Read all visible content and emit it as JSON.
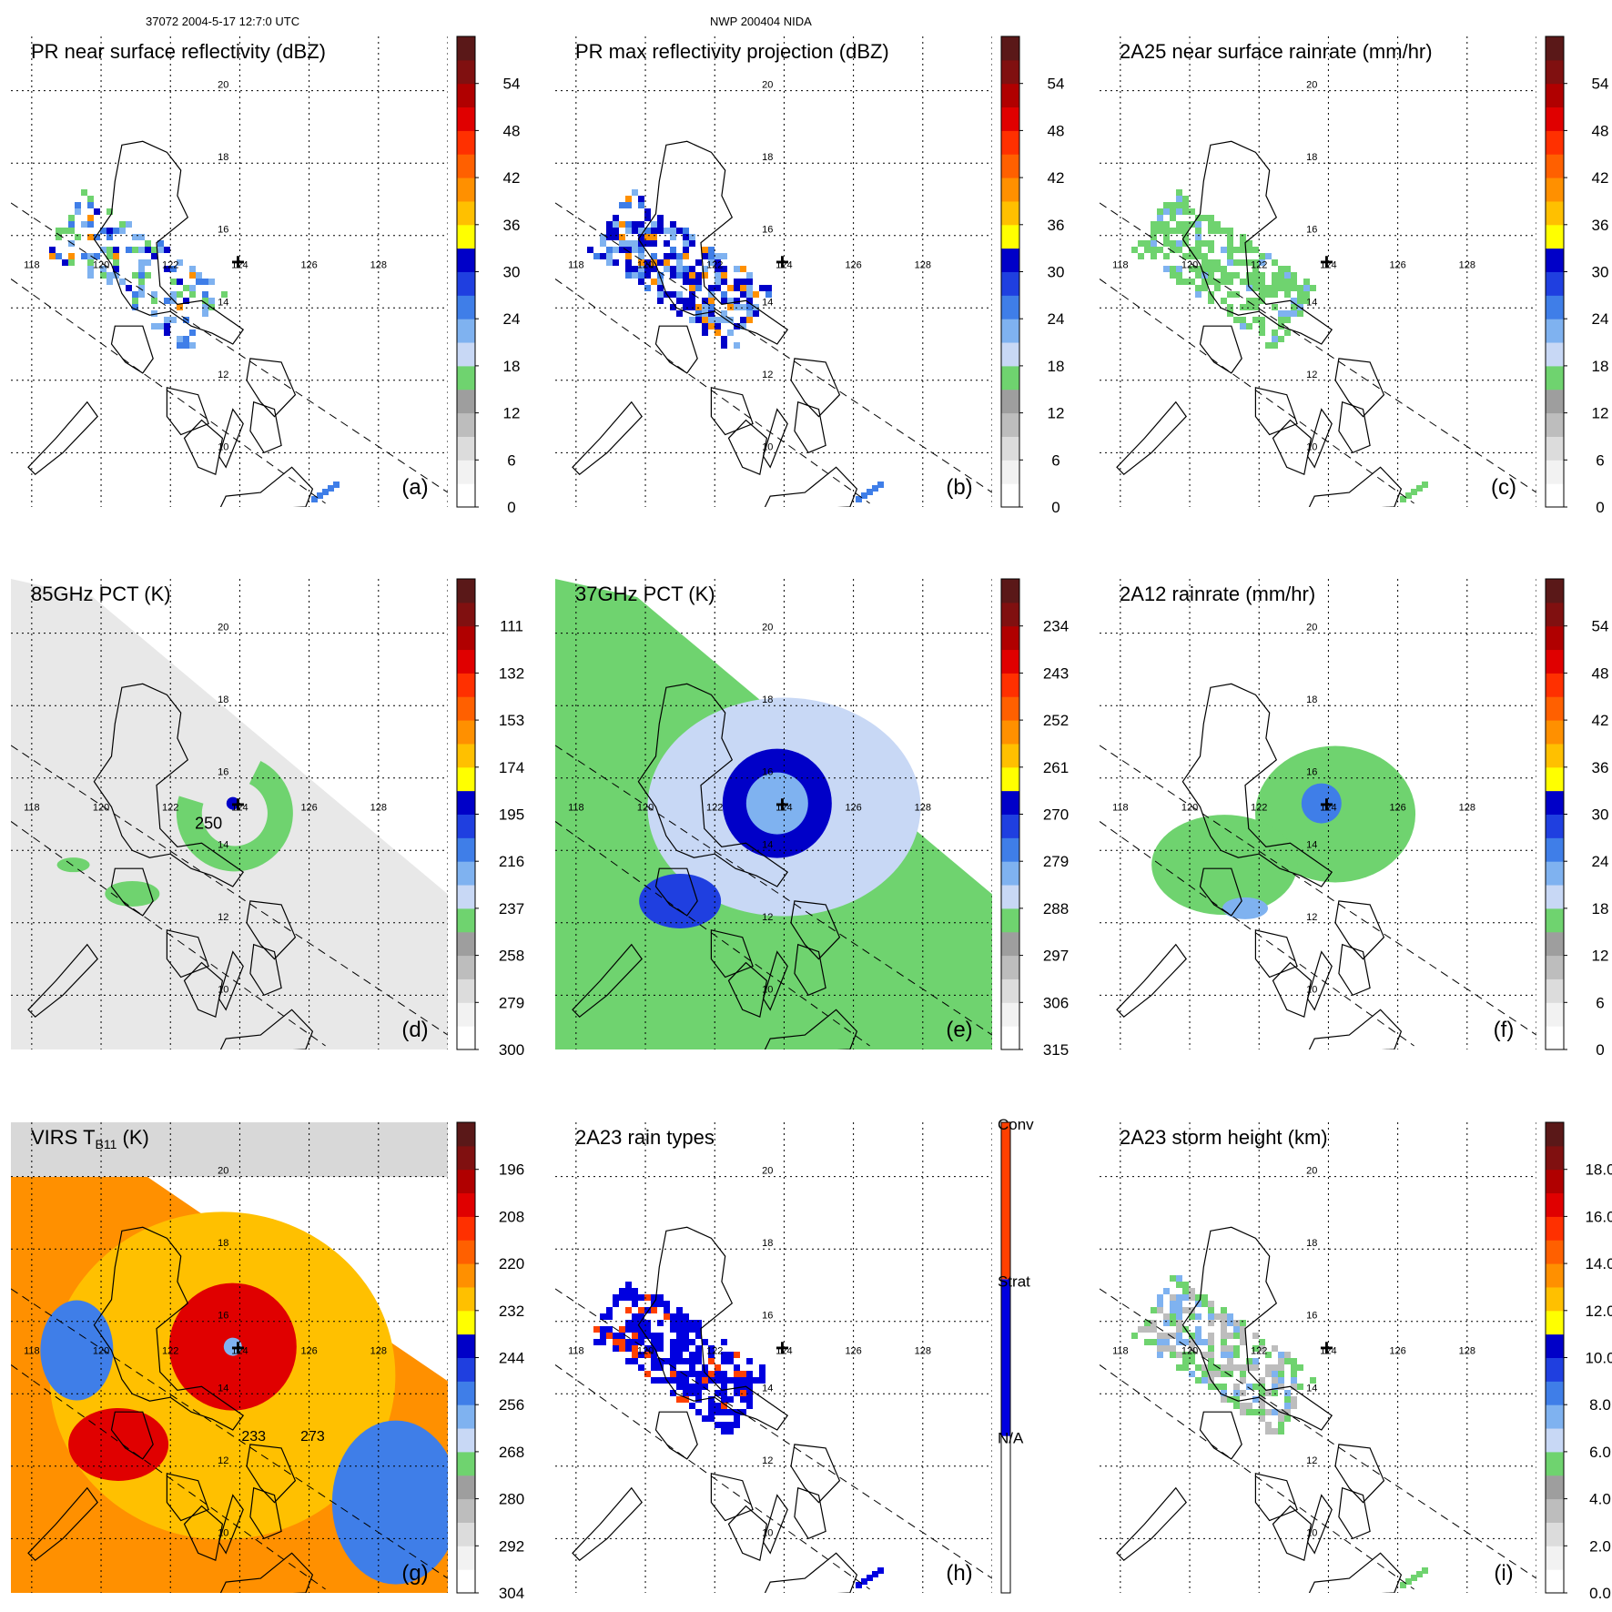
{
  "header": {
    "left": "37072 2004-5-17 12:7:0 UTC",
    "center": "NWP 200404 NIDA"
  },
  "map": {
    "lon_labels": [
      "118",
      "120",
      "122",
      "124",
      "126",
      "128"
    ],
    "lat_labels": [
      "20",
      "18",
      "16",
      "14",
      "12",
      "10"
    ],
    "storm_marker": "+"
  },
  "chart_data": [
    {
      "id": "a",
      "type": "heatmap",
      "title": "PR near surface reflectivity (dBZ)",
      "panel_label": "(a)",
      "colorbar": [
        "0",
        "6",
        "12",
        "18",
        "24",
        "30",
        "36",
        "42",
        "48",
        "54"
      ],
      "lon_range": [
        118,
        130
      ],
      "lat_range": [
        9,
        21
      ]
    },
    {
      "id": "b",
      "type": "heatmap",
      "title": "PR max reflectivity projection (dBZ)",
      "panel_label": "(b)",
      "colorbar": [
        "0",
        "6",
        "12",
        "18",
        "24",
        "30",
        "36",
        "42",
        "48",
        "54"
      ],
      "lon_range": [
        118,
        130
      ],
      "lat_range": [
        9,
        21
      ]
    },
    {
      "id": "c",
      "type": "heatmap",
      "title": "2A25 near surface rainrate (mm/hr)",
      "panel_label": "(c)",
      "colorbar": [
        "0",
        "6",
        "12",
        "18",
        "24",
        "30",
        "36",
        "42",
        "48",
        "54"
      ],
      "lon_range": [
        118,
        130
      ],
      "lat_range": [
        9,
        21
      ]
    },
    {
      "id": "d",
      "type": "heatmap",
      "title": "85GHz PCT (K)",
      "panel_label": "(d)",
      "colorbar": [
        "300",
        "279",
        "258",
        "237",
        "216",
        "195",
        "174",
        "153",
        "132",
        "111"
      ],
      "contour_label": "250",
      "lon_range": [
        118,
        130
      ],
      "lat_range": [
        9,
        21
      ]
    },
    {
      "id": "e",
      "type": "heatmap",
      "title": "37GHz PCT (K)",
      "panel_label": "(e)",
      "colorbar": [
        "315",
        "306",
        "297",
        "288",
        "279",
        "270",
        "261",
        "252",
        "243",
        "234"
      ],
      "lon_range": [
        118,
        130
      ],
      "lat_range": [
        9,
        21
      ]
    },
    {
      "id": "f",
      "type": "heatmap",
      "title": "2A12 rainrate (mm/hr)",
      "panel_label": "(f)",
      "colorbar": [
        "0",
        "6",
        "12",
        "18",
        "24",
        "30",
        "36",
        "42",
        "48",
        "54"
      ],
      "lon_range": [
        118,
        130
      ],
      "lat_range": [
        9,
        21
      ]
    },
    {
      "id": "g",
      "type": "heatmap",
      "title_main": "VIRS T",
      "title_sub": "B11",
      "title_unit": " (K)",
      "panel_label": "(g)",
      "colorbar": [
        "304",
        "292",
        "280",
        "268",
        "256",
        "244",
        "232",
        "220",
        "208",
        "196"
      ],
      "contour_labels": [
        "233",
        "273"
      ],
      "lon_range": [
        118,
        130
      ],
      "lat_range": [
        9,
        21
      ]
    },
    {
      "id": "h",
      "type": "heatmap",
      "title": "2A23 rain types",
      "panel_label": "(h)",
      "colorbar": [
        "N/A",
        "Strat",
        "Conv"
      ],
      "lon_range": [
        118,
        130
      ],
      "lat_range": [
        9,
        21
      ]
    },
    {
      "id": "i",
      "type": "heatmap",
      "title": "2A23 storm height (km)",
      "panel_label": "(i)",
      "colorbar": [
        "0.0",
        "2.0",
        "4.0",
        "6.0",
        "8.0",
        "10.0",
        "12.0",
        "14.0",
        "16.0",
        "18.0"
      ],
      "lon_range": [
        118,
        130
      ],
      "lat_range": [
        9,
        21
      ]
    }
  ],
  "colors": {
    "scale": [
      "#ffffff",
      "#f2f2f2",
      "#dcdcdc",
      "#bdbdbd",
      "#9e9e9e",
      "#6fd36f",
      "#c8d8f5",
      "#7fb2f0",
      "#3f7ee8",
      "#1f3fe0",
      "#0000c8",
      "#ffff00",
      "#ffc000",
      "#ff9000",
      "#ff6000",
      "#ff3000",
      "#e00000",
      "#b00000",
      "#801010",
      "#5a1818"
    ],
    "rain_types": [
      "#ffffff",
      "#0000e0",
      "#ff4000"
    ]
  }
}
